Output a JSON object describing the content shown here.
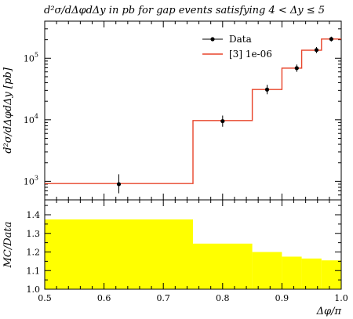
{
  "chart_data": [
    {
      "type": "line",
      "panel": "main",
      "title": "d²σ/dΔφdΔy in pb for gap events satisfying 4 < Δy ≤ 5",
      "xlabel": "",
      "ylabel": "d²σ/dΔφdΔy [pb]",
      "xlim": [
        0.5,
        1.0
      ],
      "ylim": [
        500,
        400000
      ],
      "yscale": "log",
      "x_tick_labels": [],
      "y_tick_labels": [
        {
          "value": 1000,
          "mantissa": "10",
          "exp": "3"
        },
        {
          "value": 10000,
          "mantissa": "10",
          "exp": "4"
        },
        {
          "value": 100000,
          "mantissa": "10",
          "exp": "5"
        }
      ],
      "grid": false,
      "legend_position": "top-right",
      "series": [
        {
          "name": "Data",
          "style": "points-with-errorbars",
          "color": "#000000",
          "points": [
            {
              "x": 0.625,
              "y": 900,
              "ylo": 640,
              "yhi": 1300
            },
            {
              "x": 0.8,
              "y": 9500,
              "ylo": 7700,
              "yhi": 11700
            },
            {
              "x": 0.875,
              "y": 31000,
              "ylo": 26000,
              "yhi": 37000
            },
            {
              "x": 0.925,
              "y": 69000,
              "ylo": 60000,
              "yhi": 79000
            },
            {
              "x": 0.9583,
              "y": 136000,
              "ylo": 121000,
              "yhi": 152000
            },
            {
              "x": 0.9833,
              "y": 205000,
              "ylo": 187000,
              "yhi": 224000
            }
          ]
        },
        {
          "name": "[3] 1e-06",
          "style": "step",
          "color": "#e8442a",
          "bins": [
            {
              "x0": 0.5,
              "x1": 0.75,
              "y": 920
            },
            {
              "x0": 0.75,
              "x1": 0.85,
              "y": 9700
            },
            {
              "x0": 0.85,
              "x1": 0.9,
              "y": 31000
            },
            {
              "x0": 0.9,
              "x1": 0.9333,
              "y": 69000
            },
            {
              "x0": 0.9333,
              "x1": 0.9667,
              "y": 135000
            },
            {
              "x0": 0.9667,
              "x1": 1.0,
              "y": 205000
            }
          ]
        }
      ]
    },
    {
      "type": "area",
      "panel": "ratio",
      "xlabel": "Δφ/π",
      "ylabel": "MC/Data",
      "xlim": [
        0.5,
        1.0
      ],
      "ylim": [
        1.0,
        1.48
      ],
      "x_tick_labels": [
        "0.5",
        "0.6",
        "0.7",
        "0.8",
        "0.9",
        "1.0"
      ],
      "y_tick_labels": [
        "1.0",
        "1.1",
        "1.2",
        "1.3",
        "1.4"
      ],
      "grid": false,
      "fill_color": "#ffff00",
      "bins": [
        {
          "x0": 0.5,
          "x1": 0.75,
          "y": 1.375
        },
        {
          "x0": 0.75,
          "x1": 0.85,
          "y": 1.245
        },
        {
          "x0": 0.85,
          "x1": 0.9,
          "y": 1.2
        },
        {
          "x0": 0.9,
          "x1": 0.9333,
          "y": 1.175
        },
        {
          "x0": 0.9333,
          "x1": 0.9667,
          "y": 1.165
        },
        {
          "x0": 0.9667,
          "x1": 1.0,
          "y": 1.155
        }
      ]
    }
  ]
}
